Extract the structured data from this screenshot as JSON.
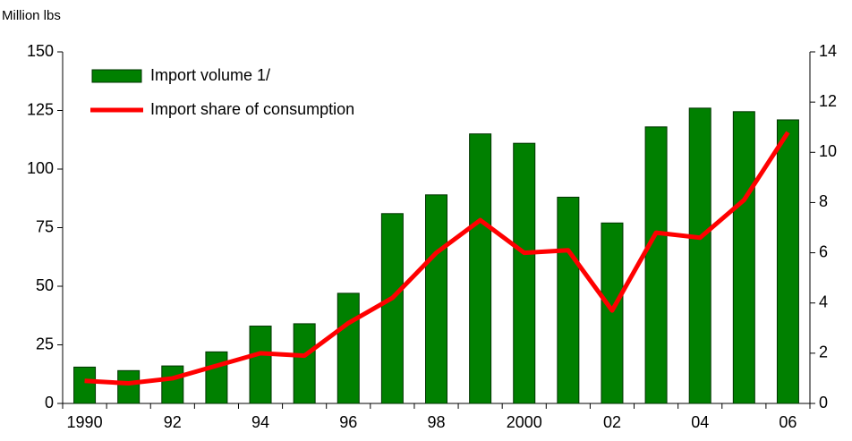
{
  "chart_data": {
    "type": "bar_line",
    "y_label": "Million lbs",
    "categories": [
      "1990",
      null,
      "92",
      null,
      "94",
      null,
      "96",
      null,
      "98",
      null,
      "2000",
      null,
      "02",
      null,
      "04",
      null,
      "06"
    ],
    "series": [
      {
        "name": "Import volume 1/",
        "type": "bar",
        "color": "#008000",
        "values": [
          15.5,
          14,
          16,
          22,
          33,
          34,
          47,
          81,
          89,
          115,
          111,
          88,
          77,
          118,
          126,
          124.5,
          121
        ]
      },
      {
        "name": "Import share of consumption",
        "type": "line",
        "color": "#ff0000",
        "axis": "y2",
        "values": [
          0.9,
          0.8,
          1.0,
          1.5,
          2.0,
          1.9,
          3.2,
          4.2,
          6.0,
          7.3,
          6.0,
          6.1,
          3.7,
          6.8,
          6.6,
          8.1,
          10.8
        ]
      }
    ],
    "ylim": [
      0,
      150
    ],
    "yticks": [
      0,
      25,
      50,
      75,
      100,
      125,
      150
    ],
    "y2lim": [
      0,
      14
    ],
    "y2ticks": [
      0,
      2,
      4,
      6,
      8,
      10,
      12,
      14
    ],
    "grid": false
  }
}
